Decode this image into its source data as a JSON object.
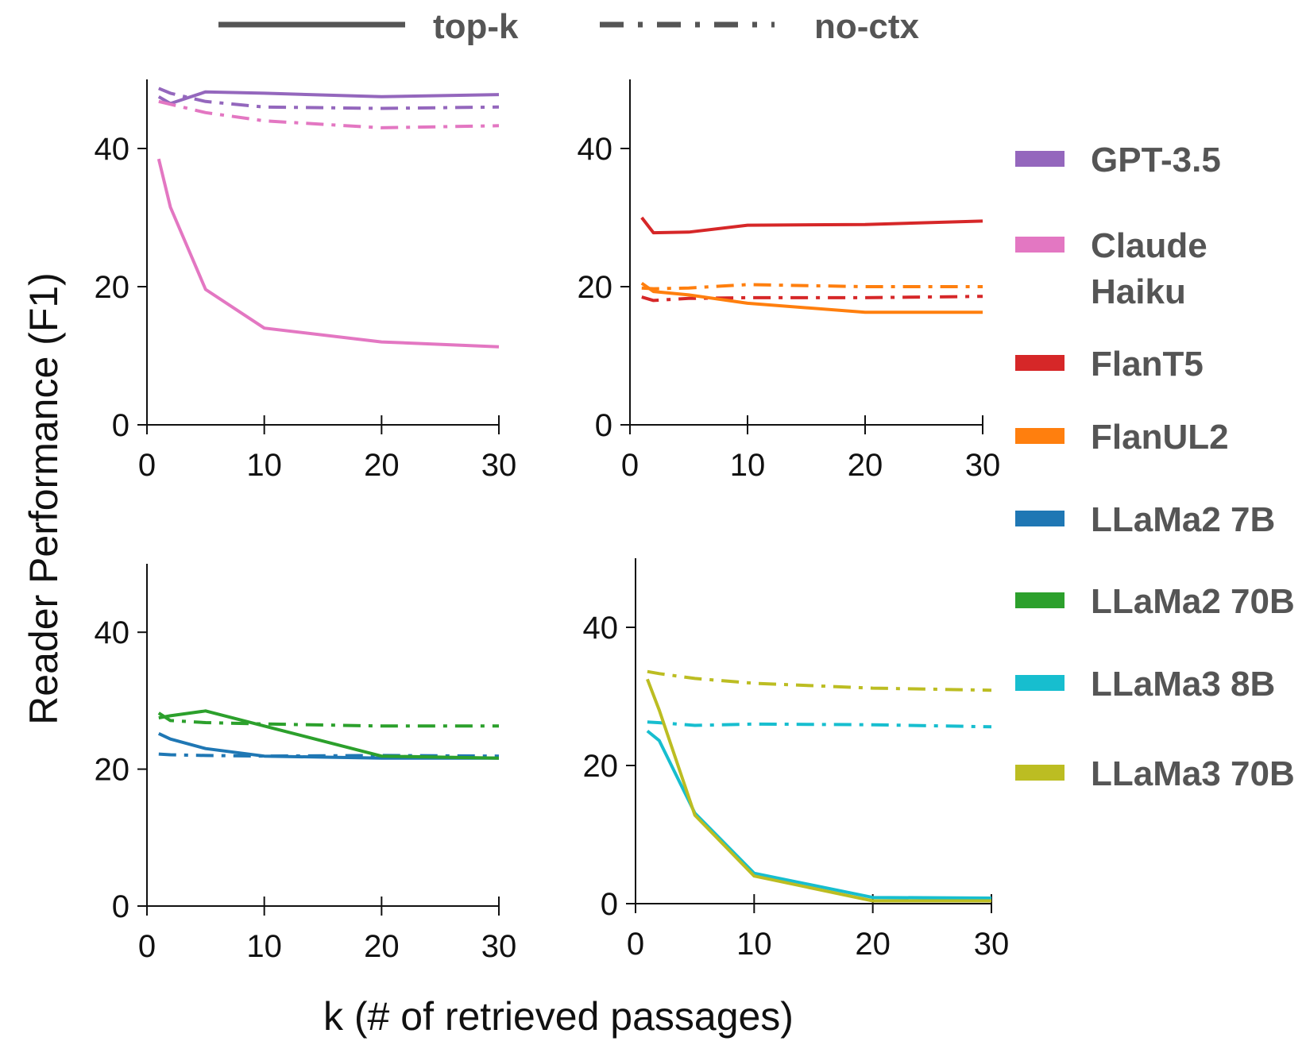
{
  "chart_data": {
    "type": "line",
    "ylabel": "Reader Performance (F1)",
    "xlabel": "k (# of retrieved passages)",
    "style_legend": [
      {
        "label": "top-k",
        "dash": "solid"
      },
      {
        "label": "no-ctx",
        "dash": "dashdot"
      }
    ],
    "legend": [
      {
        "lines": [
          "GPT-3.5"
        ],
        "color": "#9467bd"
      },
      {
        "lines": [
          "Claude",
          "Haiku"
        ],
        "color": "#e377c2"
      },
      {
        "lines": [
          "FlanT5"
        ],
        "color": "#d62728"
      },
      {
        "lines": [
          "FlanUL2"
        ],
        "color": "#ff7f0e"
      },
      {
        "lines": [
          "LLaMa2 7B"
        ],
        "color": "#1f77b4"
      },
      {
        "lines": [
          "LLaMa2 70B"
        ],
        "color": "#2ca02c"
      },
      {
        "lines": [
          "LLaMa3 8B"
        ],
        "color": "#17becf"
      },
      {
        "lines": [
          "LLaMa3 70B"
        ],
        "color": "#bcbd22"
      }
    ],
    "panels": [
      {
        "xlim": [
          0,
          30
        ],
        "ylim": [
          0,
          50
        ],
        "xticks": [
          0,
          10,
          20,
          30
        ],
        "yticks": [
          0,
          20,
          40
        ],
        "series": [
          {
            "model": "GPT-3.5",
            "mode": "top-k",
            "color": "#9467bd",
            "x": [
              1,
              2,
              5,
              10,
              20,
              30
            ],
            "y": [
              47.5,
              46.5,
              48.2,
              48,
              47.5,
              47.8
            ]
          },
          {
            "model": "GPT-3.5",
            "mode": "no-ctx",
            "color": "#9467bd",
            "x": [
              1,
              2,
              5,
              10,
              20,
              30
            ],
            "y": [
              48.7,
              48,
              46.8,
              46,
              45.8,
              46
            ]
          },
          {
            "model": "Claude Haiku",
            "mode": "top-k",
            "color": "#e377c2",
            "x": [
              1,
              2,
              5,
              10,
              20,
              30
            ],
            "y": [
              38.5,
              31.5,
              19.6,
              14,
              12,
              11.3
            ]
          },
          {
            "model": "Claude Haiku",
            "mode": "no-ctx",
            "color": "#e377c2",
            "x": [
              1,
              2,
              5,
              10,
              20,
              30
            ],
            "y": [
              46.8,
              46.4,
              45.2,
              44,
              43,
              43.3
            ]
          }
        ]
      },
      {
        "xlim": [
          0,
          30
        ],
        "ylim": [
          0,
          50
        ],
        "xticks": [
          0,
          10,
          20,
          30
        ],
        "yticks": [
          0,
          20,
          40
        ],
        "series": [
          {
            "model": "FlanT5",
            "mode": "top-k",
            "color": "#d62728",
            "x": [
              1,
              2,
              5,
              10,
              20,
              30
            ],
            "y": [
              30,
              27.8,
              27.9,
              28.9,
              29,
              29.5
            ]
          },
          {
            "model": "FlanT5",
            "mode": "no-ctx",
            "color": "#d62728",
            "x": [
              1,
              2,
              5,
              10,
              20,
              30
            ],
            "y": [
              18.5,
              18,
              18.3,
              18.4,
              18.4,
              18.6
            ]
          },
          {
            "model": "FlanUL2",
            "mode": "top-k",
            "color": "#ff7f0e",
            "x": [
              1,
              2,
              5,
              10,
              20,
              30
            ],
            "y": [
              20.5,
              19.3,
              18.8,
              17.6,
              16.3,
              16.3
            ]
          },
          {
            "model": "FlanUL2",
            "mode": "no-ctx",
            "color": "#ff7f0e",
            "x": [
              1,
              2,
              5,
              10,
              20,
              30
            ],
            "y": [
              19.8,
              19.7,
              19.8,
              20.3,
              20,
              20
            ]
          }
        ]
      },
      {
        "xlim": [
          0,
          30
        ],
        "ylim": [
          0,
          50
        ],
        "xticks": [
          0,
          10,
          20,
          30
        ],
        "yticks": [
          0,
          20,
          40
        ],
        "series": [
          {
            "model": "LLaMa2 7B",
            "mode": "top-k",
            "color": "#1f77b4",
            "x": [
              1,
              2,
              5,
              10,
              20,
              30
            ],
            "y": [
              25.2,
              24.4,
              23,
              21.9,
              21.6,
              21.6
            ]
          },
          {
            "model": "LLaMa2 7B",
            "mode": "no-ctx",
            "color": "#1f77b4",
            "x": [
              1,
              2,
              5,
              10,
              20,
              30
            ],
            "y": [
              22.2,
              22.1,
              22,
              21.9,
              22,
              21.9
            ]
          },
          {
            "model": "LLaMa2 70B",
            "mode": "top-k",
            "color": "#2ca02c",
            "x": [
              1,
              2,
              5,
              10,
              20,
              30
            ],
            "y": [
              27.5,
              27.8,
              28.5,
              26.3,
              21.9,
              21.6
            ]
          },
          {
            "model": "LLaMa2 70B",
            "mode": "no-ctx",
            "color": "#2ca02c",
            "x": [
              1,
              2,
              5,
              10,
              20,
              30
            ],
            "y": [
              28.2,
              27.1,
              26.8,
              26.6,
              26.3,
              26.3
            ]
          }
        ]
      },
      {
        "xlim": [
          0,
          30
        ],
        "ylim": [
          0,
          50
        ],
        "xticks": [
          0,
          10,
          20,
          30
        ],
        "yticks": [
          0,
          20,
          40
        ],
        "series": [
          {
            "model": "LLaMa3 8B",
            "mode": "top-k",
            "color": "#17becf",
            "x": [
              1,
              2,
              5,
              10,
              20,
              30
            ],
            "y": [
              25,
              23.6,
              13.1,
              4.4,
              0.9,
              0.8
            ]
          },
          {
            "model": "LLaMa3 8B",
            "mode": "no-ctx",
            "color": "#17becf",
            "x": [
              1,
              2,
              5,
              10,
              20,
              30
            ],
            "y": [
              26.3,
              26.2,
              25.8,
              26,
              25.9,
              25.6
            ]
          },
          {
            "model": "LLaMa3 70B",
            "mode": "top-k",
            "color": "#bcbd22",
            "x": [
              1,
              2,
              5,
              10,
              20,
              30
            ],
            "y": [
              32.5,
              28,
              12.8,
              4,
              0.4,
              0.4
            ]
          },
          {
            "model": "LLaMa3 70B",
            "mode": "no-ctx",
            "color": "#bcbd22",
            "x": [
              1,
              2,
              5,
              10,
              20,
              30
            ],
            "y": [
              33.6,
              33.3,
              32.6,
              31.9,
              31.2,
              30.9
            ]
          }
        ]
      }
    ]
  }
}
